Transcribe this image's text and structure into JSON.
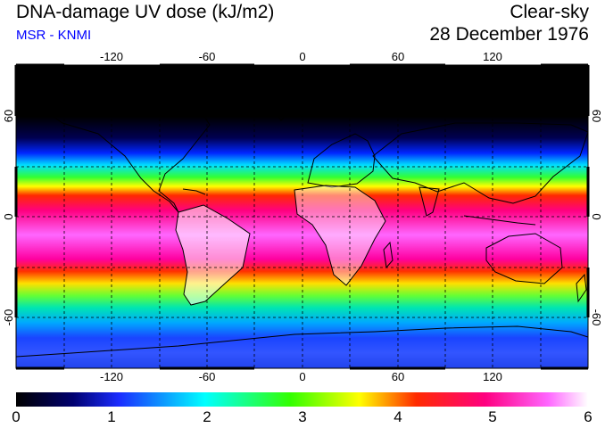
{
  "header": {
    "title": "DNA-damage UV dose (kJ/m2)",
    "subtitle": "MSR - KNMI",
    "condition": "Clear-sky",
    "date": "28 December 1976"
  },
  "map": {
    "lon_ticks": [
      "-120",
      "-60",
      "0",
      "60",
      "120"
    ],
    "lat_ticks": [
      "60",
      "0",
      "-60"
    ],
    "grid_lon_step_deg": 30,
    "grid_lat_step_deg": 30
  },
  "colorbar": {
    "ticks": [
      "0",
      "1",
      "2",
      "3",
      "4",
      "5",
      "6"
    ],
    "colors": [
      "#000000",
      "#000070",
      "#1a2cff",
      "#00ffff",
      "#33ff00",
      "#ffff00",
      "#ff2a00",
      "#ff0080",
      "#ff66ff",
      "#ffffff"
    ]
  }
}
